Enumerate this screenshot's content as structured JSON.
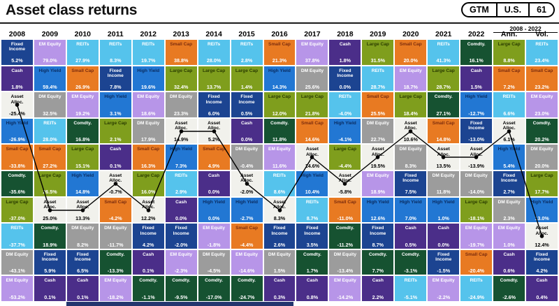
{
  "header": {
    "title": "Asset class returns",
    "pill": {
      "market": "GTM",
      "region": "U.S.",
      "page": "61"
    }
  },
  "misc": {
    "footer_bar_color": "#23356e",
    "line_color": "#000000"
  },
  "chart_data": {
    "type": "heatmap",
    "title": "Asset class returns",
    "period_label": "2008 - 2022",
    "legend_position": "none",
    "value_color_default": "#ffffff",
    "assets": {
      "fixed_income": {
        "name": "Fixed Income",
        "bg": "#1c4491",
        "fg": "#ffffff"
      },
      "cash": {
        "name": "Cash",
        "bg": "#4b2e89",
        "fg": "#ffffff"
      },
      "em_equity": {
        "name": "EM Equity",
        "bg": "#b795e8",
        "fg": "#ffffff"
      },
      "reits": {
        "name": "REITs",
        "bg": "#55c3ec",
        "fg": "#ffffff"
      },
      "high_yield": {
        "name": "High Yield",
        "bg": "#2277d3",
        "fg": "#0a2d62"
      },
      "large_cap": {
        "name": "Large Cap",
        "bg": "#7f9e1d",
        "fg": "#2b3d00"
      },
      "small_cap": {
        "name": "Small Cap",
        "bg": "#e87a22",
        "fg": "#7c2d0e"
      },
      "dm_equity": {
        "name": "DM Equity",
        "bg": "#9c9c9c",
        "fg": "#ffffff"
      },
      "comdty": {
        "name": "Comdty.",
        "bg": "#165231",
        "fg": "#ffffff"
      },
      "asset_alloc": {
        "name": "Asset Alloc.",
        "bg": "#f1f1ec",
        "fg": "#000000",
        "vcolor": "#000000"
      }
    },
    "columns": [
      {
        "label": "2008",
        "cells": [
          [
            "fixed_income",
            "5.2%"
          ],
          [
            "cash",
            "1.8%"
          ],
          [
            "asset_alloc",
            "-25.4%"
          ],
          [
            "high_yield",
            "-26.9%"
          ],
          [
            "small_cap",
            "-33.8%"
          ],
          [
            "comdty",
            "-35.6%"
          ],
          [
            "large_cap",
            "-37.0%"
          ],
          [
            "reits",
            "-37.7%"
          ],
          [
            "dm_equity",
            "-43.1%"
          ],
          [
            "em_equity",
            "-53.2%"
          ]
        ]
      },
      {
        "label": "2009",
        "cells": [
          [
            "em_equity",
            "79.0%"
          ],
          [
            "high_yield",
            "59.4%"
          ],
          [
            "dm_equity",
            "32.5%"
          ],
          [
            "reits",
            "28.0%"
          ],
          [
            "small_cap",
            "27.2%"
          ],
          [
            "large_cap",
            "26.5%"
          ],
          [
            "asset_alloc",
            "25.0%"
          ],
          [
            "comdty",
            "18.9%"
          ],
          [
            "fixed_income",
            "5.9%"
          ],
          [
            "cash",
            "0.1%"
          ]
        ]
      },
      {
        "label": "2010",
        "cells": [
          [
            "reits",
            "27.9%"
          ],
          [
            "small_cap",
            "26.9%"
          ],
          [
            "em_equity",
            "19.2%"
          ],
          [
            "comdty",
            "16.8%"
          ],
          [
            "large_cap",
            "15.1%"
          ],
          [
            "high_yield",
            "14.8%"
          ],
          [
            "asset_alloc",
            "13.3%"
          ],
          [
            "dm_equity",
            "8.2%"
          ],
          [
            "fixed_income",
            "6.5%"
          ],
          [
            "cash",
            "0.1%"
          ]
        ]
      },
      {
        "label": "2011",
        "cells": [
          [
            "reits",
            "8.3%"
          ],
          [
            "fixed_income",
            "7.8%"
          ],
          [
            "high_yield",
            "3.1%"
          ],
          [
            "large_cap",
            "2.1%"
          ],
          [
            "cash",
            "0.1%"
          ],
          [
            "asset_alloc",
            "-0.7%"
          ],
          [
            "small_cap",
            "-4.2%"
          ],
          [
            "dm_equity",
            "-11.7%"
          ],
          [
            "comdty",
            "-13.3%"
          ],
          [
            "em_equity",
            "-18.2%"
          ]
        ]
      },
      {
        "label": "2012",
        "cells": [
          [
            "reits",
            "19.7%"
          ],
          [
            "high_yield",
            "19.6%"
          ],
          [
            "em_equity",
            "18.6%"
          ],
          [
            "dm_equity",
            "17.9%"
          ],
          [
            "small_cap",
            "16.3%"
          ],
          [
            "large_cap",
            "16.0%"
          ],
          [
            "asset_alloc",
            "12.2%"
          ],
          [
            "fixed_income",
            "4.2%"
          ],
          [
            "cash",
            "0.1%"
          ],
          [
            "comdty",
            "-1.1%"
          ]
        ]
      },
      {
        "label": "2013",
        "cells": [
          [
            "small_cap",
            "38.8%"
          ],
          [
            "large_cap",
            "32.4%"
          ],
          [
            "dm_equity",
            "23.3%"
          ],
          [
            "asset_alloc",
            "14.9%"
          ],
          [
            "high_yield",
            "7.3%"
          ],
          [
            "reits",
            "2.9%"
          ],
          [
            "cash",
            "0.0%"
          ],
          [
            "fixed_income",
            "-2.0%"
          ],
          [
            "em_equity",
            "-2.3%"
          ],
          [
            "comdty",
            "-9.5%"
          ]
        ]
      },
      {
        "label": "2014",
        "cells": [
          [
            "reits",
            "28.0%"
          ],
          [
            "large_cap",
            "13.7%"
          ],
          [
            "fixed_income",
            "6.0%"
          ],
          [
            "asset_alloc",
            "5.2%"
          ],
          [
            "small_cap",
            "4.9%"
          ],
          [
            "cash",
            "0.0%"
          ],
          [
            "high_yield",
            "0.0%"
          ],
          [
            "em_equity",
            "-1.8%"
          ],
          [
            "dm_equity",
            "-4.5%"
          ],
          [
            "comdty",
            "-17.0%"
          ]
        ]
      },
      {
        "label": "2015",
        "cells": [
          [
            "reits",
            "2.8%"
          ],
          [
            "large_cap",
            "1.4%"
          ],
          [
            "fixed_income",
            "0.5%"
          ],
          [
            "cash",
            "0.0%"
          ],
          [
            "dm_equity",
            "-0.4%"
          ],
          [
            "asset_alloc",
            "-2.0%"
          ],
          [
            "high_yield",
            "-2.7%"
          ],
          [
            "small_cap",
            "-4.4%"
          ],
          [
            "em_equity",
            "-14.6%"
          ],
          [
            "comdty",
            "-24.7%"
          ]
        ]
      },
      {
        "label": "2016",
        "cells": [
          [
            "small_cap",
            "21.3%"
          ],
          [
            "high_yield",
            "14.3%"
          ],
          [
            "large_cap",
            "12.0%"
          ],
          [
            "comdty",
            "11.8%"
          ],
          [
            "em_equity",
            "11.6%"
          ],
          [
            "reits",
            "8.6%"
          ],
          [
            "asset_alloc",
            "8.3%"
          ],
          [
            "fixed_income",
            "2.6%"
          ],
          [
            "dm_equity",
            "1.5%"
          ],
          [
            "cash",
            "0.3%"
          ]
        ]
      },
      {
        "label": "2017",
        "cells": [
          [
            "em_equity",
            "37.8%"
          ],
          [
            "dm_equity",
            "25.6%"
          ],
          [
            "large_cap",
            "21.8%"
          ],
          [
            "small_cap",
            "14.6%"
          ],
          [
            "asset_alloc",
            "14.6%"
          ],
          [
            "high_yield",
            "10.4%"
          ],
          [
            "reits",
            "8.7%"
          ],
          [
            "fixed_income",
            "3.5%"
          ],
          [
            "comdty",
            "1.7%"
          ],
          [
            "cash",
            "0.8%"
          ]
        ]
      },
      {
        "label": "2018",
        "cells": [
          [
            "cash",
            "1.8%"
          ],
          [
            "fixed_income",
            "0.0%"
          ],
          [
            "reits",
            "-4.0%"
          ],
          [
            "high_yield",
            "-4.1%"
          ],
          [
            "large_cap",
            "-4.4%"
          ],
          [
            "asset_alloc",
            "-5.8%"
          ],
          [
            "small_cap",
            "-11.0%"
          ],
          [
            "comdty",
            "-11.2%"
          ],
          [
            "dm_equity",
            "-13.4%"
          ],
          [
            "em_equity",
            "-14.2%"
          ]
        ]
      },
      {
        "label": "2019",
        "cells": [
          [
            "large_cap",
            "31.5%"
          ],
          [
            "reits",
            "28.7%"
          ],
          [
            "small_cap",
            "25.5%"
          ],
          [
            "dm_equity",
            "22.7%"
          ],
          [
            "asset_alloc",
            "19.5%"
          ],
          [
            "em_equity",
            "18.9%"
          ],
          [
            "high_yield",
            "12.6%"
          ],
          [
            "fixed_income",
            "8.7%"
          ],
          [
            "comdty",
            "7.7%"
          ],
          [
            "cash",
            "2.2%"
          ]
        ]
      },
      {
        "label": "2020",
        "cells": [
          [
            "small_cap",
            "20.0%"
          ],
          [
            "em_equity",
            "18.7%"
          ],
          [
            "large_cap",
            "18.4%"
          ],
          [
            "asset_alloc",
            "10.6%"
          ],
          [
            "dm_equity",
            "8.3%"
          ],
          [
            "fixed_income",
            "7.5%"
          ],
          [
            "high_yield",
            "7.0%"
          ],
          [
            "cash",
            "0.5%"
          ],
          [
            "comdty",
            "-3.1%"
          ],
          [
            "reits",
            "-5.1%"
          ]
        ]
      },
      {
        "label": "2021",
        "cells": [
          [
            "reits",
            "41.3%"
          ],
          [
            "large_cap",
            "28.7%"
          ],
          [
            "comdty",
            "27.1%"
          ],
          [
            "small_cap",
            "14.8%"
          ],
          [
            "asset_alloc",
            "13.5%"
          ],
          [
            "dm_equity",
            "11.8%"
          ],
          [
            "high_yield",
            "1.0%"
          ],
          [
            "cash",
            "0.0%"
          ],
          [
            "fixed_income",
            "-1.5%"
          ],
          [
            "em_equity",
            "-2.2%"
          ]
        ]
      },
      {
        "label": "2022",
        "cells": [
          [
            "comdty",
            "16.1%"
          ],
          [
            "cash",
            "1.5%"
          ],
          [
            "high_yield",
            "-12.7%"
          ],
          [
            "fixed_income",
            "-13.0%"
          ],
          [
            "asset_alloc",
            "-13.9%"
          ],
          [
            "dm_equity",
            "-14.0%"
          ],
          [
            "large_cap",
            "-18.1%"
          ],
          [
            "em_equity",
            "-19.7%"
          ],
          [
            "small_cap",
            "-20.4%"
          ],
          [
            "reits",
            "-24.9%"
          ]
        ]
      },
      {
        "label": "Ann.",
        "cells": [
          [
            "large_cap",
            "8.8%"
          ],
          [
            "small_cap",
            "7.2%"
          ],
          [
            "reits",
            "6.6%"
          ],
          [
            "asset_alloc",
            "6.1%"
          ],
          [
            "high_yield",
            "5.4%"
          ],
          [
            "fixed_income",
            "2.7%"
          ],
          [
            "dm_equity",
            "2.3%"
          ],
          [
            "em_equity",
            "1.0%"
          ],
          [
            "cash",
            "0.6%"
          ],
          [
            "comdty",
            "-2.6%"
          ]
        ]
      },
      {
        "label": "Vol.",
        "cells": [
          [
            "reits",
            "23.4%"
          ],
          [
            "small_cap",
            "23.2%"
          ],
          [
            "em_equity",
            "23.0%"
          ],
          [
            "comdty",
            "20.2%"
          ],
          [
            "dm_equity",
            "20.0%"
          ],
          [
            "large_cap",
            "17.7%"
          ],
          [
            "high_yield",
            "13.0%"
          ],
          [
            "asset_alloc",
            "12.4%"
          ],
          [
            "fixed_income",
            "4.2%"
          ],
          [
            "cash",
            "0.4%"
          ]
        ]
      }
    ]
  }
}
